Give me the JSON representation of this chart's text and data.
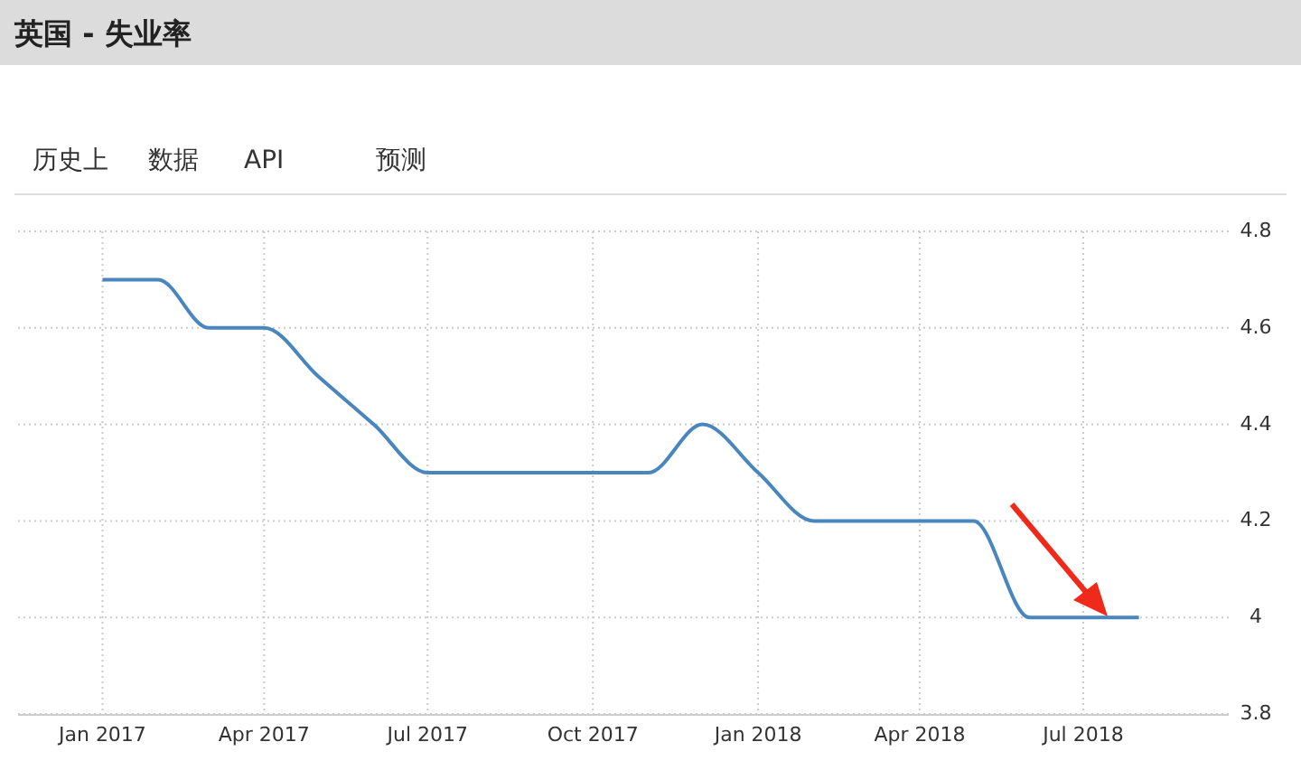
{
  "chart_data": {
    "type": "line",
    "title": "英国 - 失业率",
    "annotations": [
      "历史上",
      "数据",
      "API",
      "预测"
    ],
    "x": [
      "2017-01",
      "2017-02",
      "2017-03",
      "2017-04",
      "2017-05",
      "2017-06",
      "2017-07",
      "2017-08",
      "2017-09",
      "2017-10",
      "2017-11",
      "2017-12",
      "2018-01",
      "2018-02",
      "2018-03",
      "2018-04",
      "2018-05",
      "2018-06",
      "2018-07",
      "2018-08"
    ],
    "series": [
      {
        "color": "#4a86be",
        "values": [
          4.7,
          4.7,
          4.6,
          4.6,
          4.5,
          4.4,
          4.3,
          4.3,
          4.3,
          4.3,
          4.3,
          4.4,
          4.3,
          4.2,
          4.2,
          4.2,
          4.2,
          4.0,
          4.0,
          4.0
        ]
      }
    ],
    "xlim": [
      "2016-11-15",
      "2018-09-20"
    ],
    "xticks": [
      {
        "value": "2017-01",
        "label": "Jan 2017"
      },
      {
        "value": "2017-04",
        "label": "Apr 2017"
      },
      {
        "value": "2017-07",
        "label": "Jul 2017"
      },
      {
        "value": "2017-10",
        "label": "Oct 2017"
      },
      {
        "value": "2018-01",
        "label": "Jan 2018"
      },
      {
        "value": "2018-04",
        "label": "Apr 2018"
      },
      {
        "value": "2018-07",
        "label": "Jul 2018"
      }
    ],
    "ylim": [
      3.8,
      4.8
    ],
    "yticks": [
      3.8,
      4,
      4.2,
      4.4,
      4.6,
      4.8
    ],
    "grid": true,
    "marker": "none",
    "line_style": "solid"
  }
}
